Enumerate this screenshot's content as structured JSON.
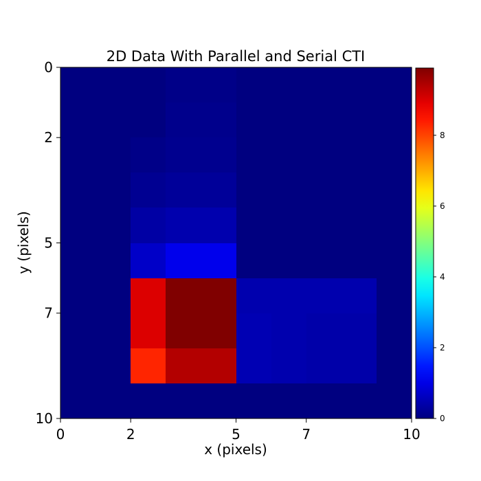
{
  "chart_data": {
    "type": "heatmap",
    "title": "2D Data With Parallel and Serial CTI",
    "xlabel": "x (pixels)",
    "ylabel": "y (pixels)",
    "x_ticks": [
      "0",
      "2",
      "5",
      "7",
      "10"
    ],
    "y_ticks": [
      "0",
      "2",
      "5",
      "7",
      "10"
    ],
    "colormap": "jet",
    "color_range": [
      0,
      9.9
    ],
    "colorbar_ticks": [
      "0",
      "2",
      "4",
      "6",
      "8"
    ],
    "colorbar_tick_values": [
      0,
      2,
      4,
      6,
      8
    ],
    "n_rows": 10,
    "n_cols": 10,
    "values": [
      [
        0,
        0,
        0,
        0.08,
        0.08,
        0,
        0,
        0,
        0,
        0
      ],
      [
        0,
        0,
        0,
        0.12,
        0.12,
        0,
        0,
        0,
        0,
        0
      ],
      [
        0,
        0,
        0.08,
        0.15,
        0.15,
        0,
        0,
        0,
        0,
        0
      ],
      [
        0,
        0,
        0.18,
        0.25,
        0.25,
        0,
        0,
        0,
        0,
        0
      ],
      [
        0,
        0,
        0.35,
        0.45,
        0.45,
        0,
        0,
        0,
        0,
        0
      ],
      [
        0,
        0,
        0.7,
        1.05,
        1.05,
        0,
        0,
        0,
        0,
        0
      ],
      [
        0,
        0,
        9.0,
        9.9,
        9.9,
        0.45,
        0.45,
        0.45,
        0.45,
        0
      ],
      [
        0,
        0,
        9.0,
        9.9,
        9.9,
        0.5,
        0.45,
        0.4,
        0.4,
        0
      ],
      [
        0,
        0,
        8.3,
        9.4,
        9.4,
        0.5,
        0.45,
        0.4,
        0.4,
        0
      ],
      [
        0,
        0,
        0,
        0,
        0,
        0,
        0,
        0,
        0,
        0
      ]
    ]
  }
}
